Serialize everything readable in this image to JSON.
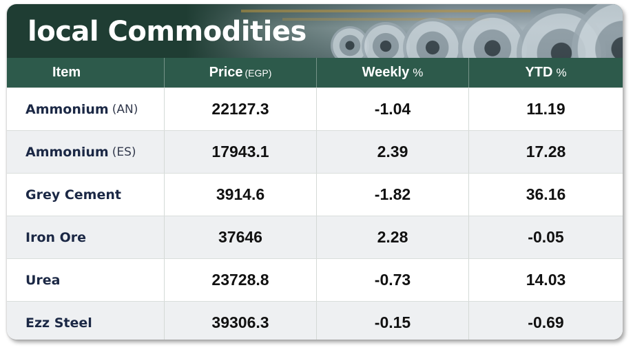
{
  "title": "local Commodities",
  "header": {
    "item": "Item",
    "price": "Price",
    "price_unit": "(EGP)",
    "weekly": "Weekly",
    "weekly_unit": "%",
    "ytd": "YTD",
    "ytd_unit": "%"
  },
  "rows": [
    {
      "name": "Ammonium",
      "sub": "(AN)",
      "price": "22127.3",
      "weekly": "-1.04",
      "ytd": "11.19"
    },
    {
      "name": "Ammonium",
      "sub": "(ES)",
      "price": "17943.1",
      "weekly": "2.39",
      "ytd": "17.28"
    },
    {
      "name": "Grey Cement",
      "sub": "",
      "price": "3914.6",
      "weekly": "-1.82",
      "ytd": "36.16"
    },
    {
      "name": "Iron Ore",
      "sub": "",
      "price": "37646",
      "weekly": "2.28",
      "ytd": "-0.05"
    },
    {
      "name": "Urea",
      "sub": "",
      "price": "23728.8",
      "weekly": "-0.73",
      "ytd": "14.03"
    },
    {
      "name": "Ezz Steel",
      "sub": "",
      "price": "39306.3",
      "weekly": "-0.15",
      "ytd": "-0.69"
    }
  ],
  "colors": {
    "banner": "#1f3d33",
    "header": "#2d5a4b",
    "item_text": "#1b2845",
    "alt_row": "#eef0f2"
  }
}
